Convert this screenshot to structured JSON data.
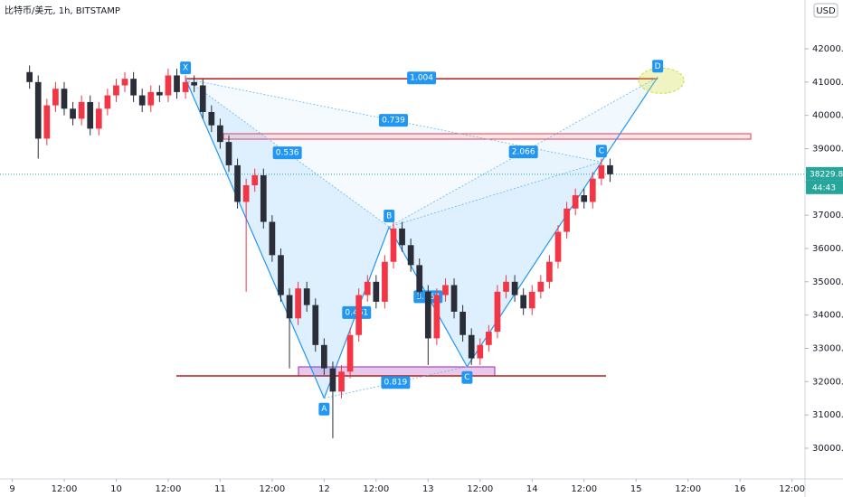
{
  "chart_data": {
    "type": "candlestick",
    "title": "比特币/美元, 1h, BITSTAMP",
    "currency": "USD",
    "x": [
      4,
      6,
      8,
      10,
      12,
      14,
      16,
      18,
      20,
      22,
      24,
      26,
      28,
      30,
      32,
      34,
      36,
      38,
      40,
      42,
      44,
      46,
      48,
      50,
      52,
      54,
      56,
      58,
      60,
      62,
      64,
      66,
      68,
      70,
      72,
      74,
      76,
      78,
      80,
      82,
      84,
      86,
      88,
      90,
      92,
      94,
      96,
      98,
      100,
      102,
      104,
      106,
      108,
      110,
      112,
      114,
      116,
      118,
      120,
      122,
      124,
      126,
      128,
      130,
      132,
      134,
      136,
      138
    ],
    "open": [
      41300,
      41000,
      39300,
      40300,
      40800,
      40200,
      39900,
      40400,
      39600,
      40200,
      40600,
      40900,
      41100,
      40600,
      40300,
      40700,
      40600,
      41200,
      40700,
      41000,
      40900,
      40100,
      39700,
      39200,
      38500,
      37400,
      37900,
      38200,
      36800,
      35800,
      34600,
      33900,
      34800,
      34300,
      33100,
      32400,
      31700,
      32300,
      33400,
      34600,
      35000,
      34400,
      35600,
      36600,
      36100,
      35500,
      34700,
      33300,
      34600,
      34900,
      34100,
      33400,
      32700,
      33100,
      33500,
      34700,
      35000,
      34600,
      34200,
      34700,
      35000,
      35600,
      36500,
      37200,
      37600,
      37400,
      38100,
      38500
    ],
    "high": [
      41500,
      41200,
      40500,
      41000,
      41000,
      40400,
      40600,
      40600,
      40400,
      40800,
      41100,
      41300,
      41300,
      40800,
      40900,
      40900,
      41400,
      41400,
      41200,
      41200,
      41100,
      40300,
      39900,
      39400,
      38700,
      38100,
      38400,
      38400,
      37000,
      36000,
      34800,
      35000,
      35000,
      34500,
      33300,
      32600,
      32500,
      33600,
      34800,
      35200,
      35200,
      35800,
      36800,
      36800,
      36300,
      35700,
      34900,
      34800,
      35100,
      35100,
      34300,
      33600,
      33300,
      33700,
      34900,
      35200,
      35200,
      34800,
      34900,
      35200,
      35800,
      36700,
      37400,
      37800,
      37800,
      38300,
      38700,
      38700
    ],
    "low": [
      40800,
      38700,
      39100,
      40100,
      40000,
      39700,
      39700,
      39400,
      39400,
      40000,
      40400,
      40700,
      40400,
      40100,
      40100,
      40400,
      40400,
      40500,
      40500,
      40700,
      39900,
      39500,
      39000,
      38300,
      37200,
      34700,
      37700,
      36600,
      35600,
      34400,
      32400,
      33700,
      34100,
      32900,
      32200,
      30300,
      31500,
      32100,
      33200,
      34400,
      34200,
      34200,
      35400,
      35900,
      35300,
      34500,
      32500,
      33100,
      34400,
      33900,
      33200,
      32500,
      32500,
      32900,
      33300,
      34500,
      34400,
      34000,
      34000,
      34500,
      34800,
      35400,
      36300,
      37000,
      37200,
      37200,
      37900,
      38000
    ],
    "close": [
      41000,
      39300,
      40300,
      40800,
      40200,
      39900,
      40400,
      39600,
      40200,
      40600,
      40900,
      41100,
      40600,
      40300,
      40700,
      40600,
      41200,
      40700,
      41000,
      40900,
      40100,
      39700,
      39200,
      38500,
      37400,
      37900,
      38200,
      36800,
      35800,
      34600,
      33900,
      34800,
      34300,
      33100,
      32400,
      31700,
      32300,
      33400,
      34600,
      35000,
      34400,
      35600,
      36600,
      36100,
      35500,
      34700,
      33300,
      34600,
      34900,
      34100,
      33400,
      32700,
      33100,
      33500,
      34700,
      35000,
      34600,
      34200,
      34700,
      35000,
      35600,
      36500,
      37200,
      37600,
      37400,
      38100,
      38500,
      38230
    ],
    "up_color": "#f23645",
    "down_color": "#2a2e39",
    "xlim": [
      -2.82,
      183
    ],
    "ylim": [
      29076,
      43466
    ],
    "xticks": [
      {
        "value": 0,
        "label": "9"
      },
      {
        "value": 12,
        "label": "12:00"
      },
      {
        "value": 24,
        "label": "10"
      },
      {
        "value": 36,
        "label": "12:00"
      },
      {
        "value": 48,
        "label": "11"
      },
      {
        "value": 60,
        "label": "12:00"
      },
      {
        "value": 72,
        "label": "12"
      },
      {
        "value": 84,
        "label": "12:00"
      },
      {
        "value": 96,
        "label": "13"
      },
      {
        "value": 108,
        "label": "12:00"
      },
      {
        "value": 120,
        "label": "14"
      },
      {
        "value": 132,
        "label": "12:00"
      },
      {
        "value": 144,
        "label": "15"
      },
      {
        "value": 156,
        "label": "12:00"
      },
      {
        "value": 168,
        "label": "16"
      },
      {
        "value": 180,
        "label": "12:00"
      }
    ],
    "yticks": [
      {
        "value": 30000,
        "label": "30000.00"
      },
      {
        "value": 31000,
        "label": "31000.00"
      },
      {
        "value": 32000,
        "label": "32000.00"
      },
      {
        "value": 33000,
        "label": "33000.00"
      },
      {
        "value": 34000,
        "label": "34000.00"
      },
      {
        "value": 35000,
        "label": "35000.00"
      },
      {
        "value": 36000,
        "label": "36000.00"
      },
      {
        "value": 37000,
        "label": "37000.00"
      },
      {
        "value": 38000,
        "label": "38000.00"
      },
      {
        "value": 39000,
        "label": "39000.00"
      },
      {
        "value": 40000,
        "label": "40000.00"
      },
      {
        "value": 41000,
        "label": "41000.00"
      },
      {
        "value": 42000,
        "label": "42000.00"
      }
    ],
    "last_price": 38229.85,
    "countdown": "44:43",
    "pattern": {
      "points": [
        {
          "label": "X",
          "x": 40,
          "y": 41100
        },
        {
          "label": "A",
          "x": 72,
          "y": 31500
        },
        {
          "label": "B",
          "x": 87,
          "y": 36650
        },
        {
          "label": "C",
          "x": 105,
          "y": 32450
        },
        {
          "label": "C",
          "x": 136,
          "y": 38600
        },
        {
          "label": "D",
          "x": 149,
          "y": 41150
        }
      ],
      "ratios": [
        1.004,
        0.739,
        0.536,
        2.066,
        0.461,
        3.763,
        0.819
      ]
    }
  }
}
